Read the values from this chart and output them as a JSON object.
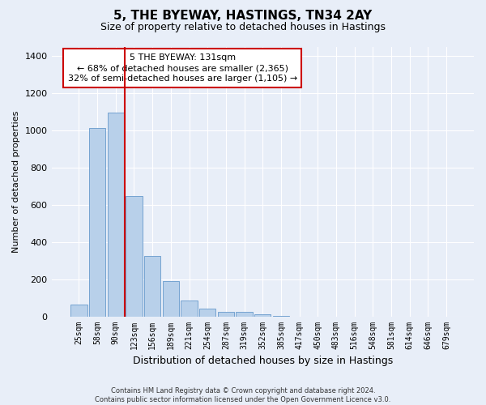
{
  "title": "5, THE BYEWAY, HASTINGS, TN34 2AY",
  "subtitle": "Size of property relative to detached houses in Hastings",
  "xlabel": "Distribution of detached houses by size in Hastings",
  "ylabel": "Number of detached properties",
  "categories": [
    "25sqm",
    "58sqm",
    "90sqm",
    "123sqm",
    "156sqm",
    "189sqm",
    "221sqm",
    "254sqm",
    "287sqm",
    "319sqm",
    "352sqm",
    "385sqm",
    "417sqm",
    "450sqm",
    "483sqm",
    "516sqm",
    "548sqm",
    "581sqm",
    "614sqm",
    "646sqm",
    "679sqm"
  ],
  "values": [
    65,
    1015,
    1095,
    650,
    325,
    190,
    88,
    42,
    28,
    28,
    15,
    5,
    2,
    1,
    1,
    0,
    0,
    0,
    0,
    0,
    0
  ],
  "bar_color": "#b8d0ea",
  "bar_edge_color": "#6699cc",
  "vline_color": "#cc0000",
  "vline_x": 2.5,
  "annotation_text": "5 THE BYEWAY: 131sqm\n← 68% of detached houses are smaller (2,365)\n32% of semi-detached houses are larger (1,105) →",
  "annotation_box_color": "#ffffff",
  "annotation_box_edge_color": "#cc0000",
  "ylim": [
    0,
    1450
  ],
  "yticks": [
    0,
    200,
    400,
    600,
    800,
    1000,
    1200,
    1400
  ],
  "footnote": "Contains HM Land Registry data © Crown copyright and database right 2024.\nContains public sector information licensed under the Open Government Licence v3.0.",
  "background_color": "#e8eef8",
  "axes_background": "#e8eef8",
  "grid_color": "#ffffff",
  "title_fontsize": 11,
  "subtitle_fontsize": 9,
  "ylabel_fontsize": 8,
  "xlabel_fontsize": 9,
  "tick_fontsize": 7,
  "ytick_fontsize": 8,
  "annot_fontsize": 8,
  "footnote_fontsize": 6
}
